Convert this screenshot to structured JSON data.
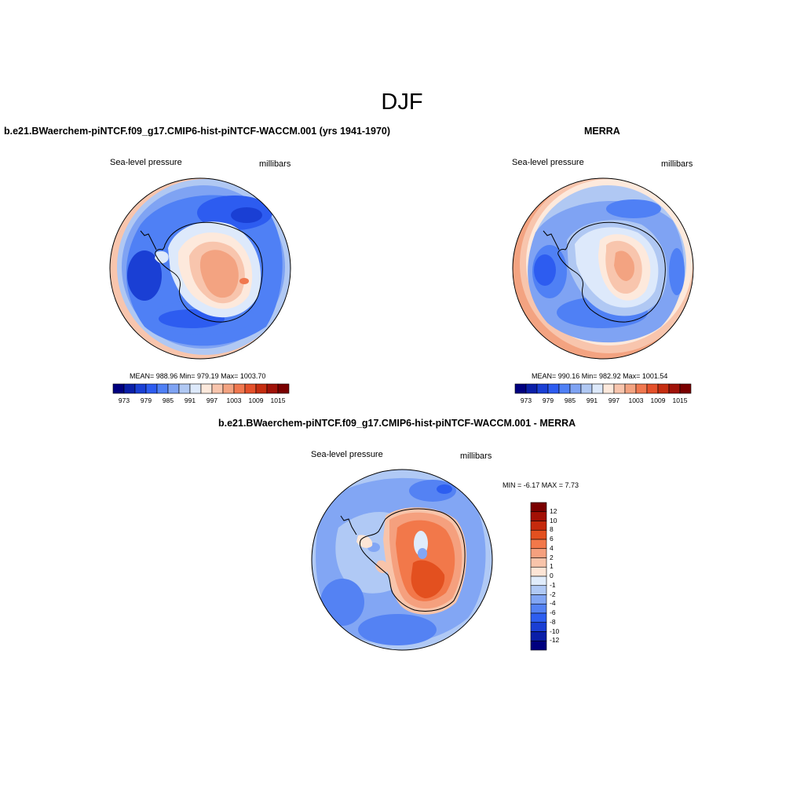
{
  "page_title": "DJF",
  "panels": {
    "model": {
      "title": "b.e21.BWaerchem-piNTCF.f09_g17.CMIP6-hist-piNTCF-WACCM.001 (yrs 1941-1970)",
      "variable": "Sea-level pressure",
      "units": "millibars",
      "stats": "MEAN= 988.96  Min= 979.19  Max= 1003.70",
      "colorbar_ticks": [
        "973",
        "979",
        "985",
        "991",
        "997",
        "1003",
        "1009",
        "1015"
      ]
    },
    "obs": {
      "title": "MERRA",
      "variable": "Sea-level pressure",
      "units": "millibars",
      "stats": "MEAN= 990.16  Min= 982.92  Max= 1001.54",
      "colorbar_ticks": [
        "973",
        "979",
        "985",
        "991",
        "997",
        "1003",
        "1009",
        "1015"
      ]
    },
    "diff": {
      "title": "b.e21.BWaerchem-piNTCF.f09_g17.CMIP6-hist-piNTCF-WACCM.001 - MERRA",
      "variable": "Sea-level pressure",
      "units": "millibars",
      "stats": "MIN =  -6.17 MAX =   7.73",
      "colorbar_ticks": [
        "12",
        "10",
        "8",
        "6",
        "4",
        "2",
        "1",
        "0",
        "-1",
        "-2",
        "-4",
        "-6",
        "-8",
        "-10",
        "-12"
      ]
    }
  },
  "colors": {
    "abs_scale": [
      "#00007f",
      "#0a1fa8",
      "#1a3fd4",
      "#2d5cf0",
      "#4f80f5",
      "#7fa3f3",
      "#b0c8f3",
      "#dde9fb",
      "#fde9dc",
      "#f8c5ad",
      "#f3a381",
      "#f0784f",
      "#e4502a",
      "#c52d10",
      "#a01208",
      "#7a0000"
    ],
    "diff_scale": [
      "#7a0000",
      "#a31005",
      "#c52a0d",
      "#e3501f",
      "#f2784a",
      "#f5a07e",
      "#f8c4aa",
      "#fde5d6",
      "#e0ecfb",
      "#b0c9f5",
      "#82a6f4",
      "#5482f3",
      "#2d5ef0",
      "#1a3fd4",
      "#0a1fa8",
      "#00007f"
    ]
  }
}
